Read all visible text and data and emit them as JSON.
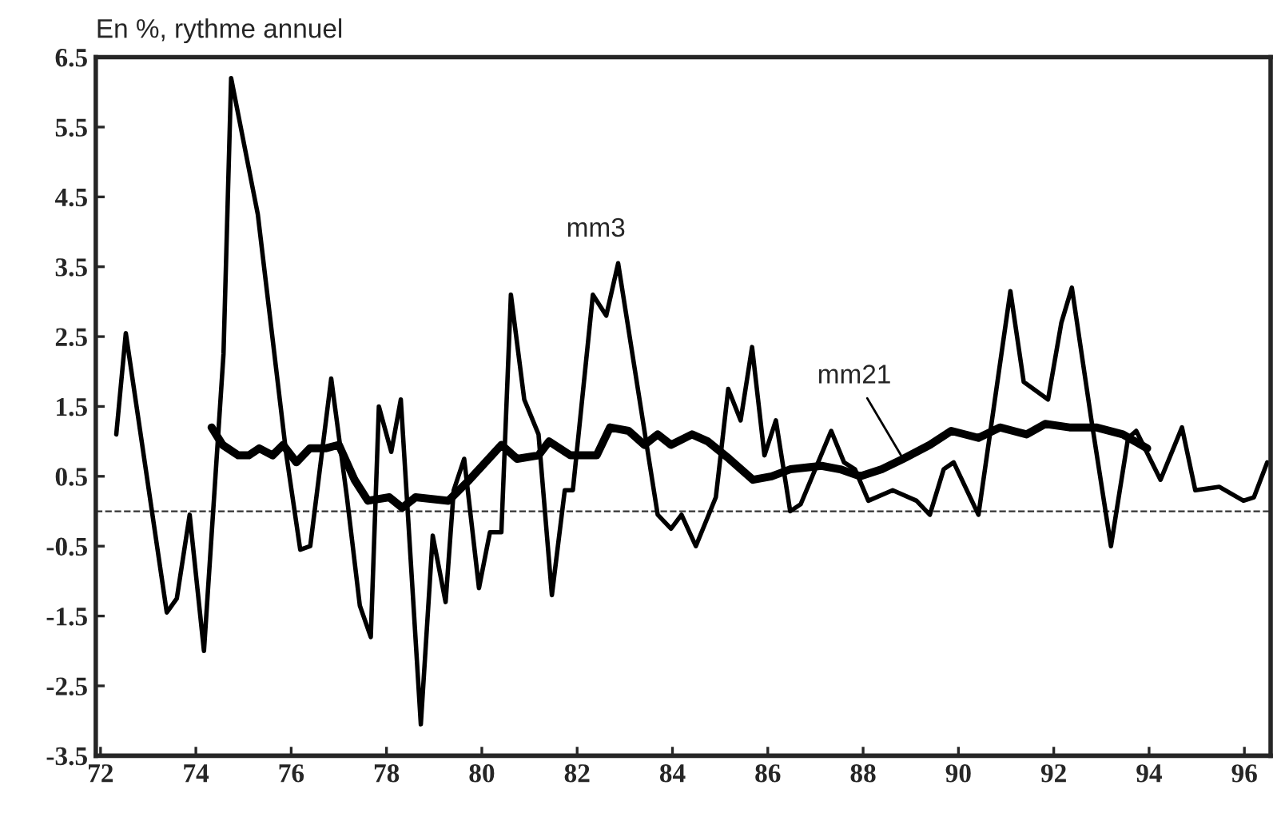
{
  "chart_data": {
    "type": "line",
    "ylabel": "En %, rythme annuel",
    "xlim": [
      71.9,
      96.55
    ],
    "xticks": [
      {
        "value": 72,
        "label": "72"
      },
      {
        "value": 74,
        "label": "74"
      },
      {
        "value": 76,
        "label": "76"
      },
      {
        "value": 78,
        "label": "78"
      },
      {
        "value": 80,
        "label": "80"
      },
      {
        "value": 82,
        "label": "82"
      },
      {
        "value": 84,
        "label": "84"
      },
      {
        "value": 86,
        "label": "86"
      },
      {
        "value": 88,
        "label": "88"
      },
      {
        "value": 90,
        "label": "90"
      },
      {
        "value": 92,
        "label": "92"
      },
      {
        "value": 94,
        "label": "94"
      },
      {
        "value": 96,
        "label": "96"
      }
    ],
    "ylim": [
      -3.5,
      6.5
    ],
    "yticks": [
      -3.5,
      -2.5,
      -1.5,
      -0.5,
      0.5,
      1.5,
      2.5,
      3.5,
      4.5,
      5.5,
      6.5
    ],
    "grid": false,
    "legend": false,
    "marker": "none",
    "line_style": "solid",
    "ref_lines": [
      {
        "axis": "y",
        "value": 0,
        "color": "#333333",
        "line_style": "dashed"
      }
    ],
    "series": [
      {
        "name": "mm3",
        "color": "#000000",
        "x": [
          72.33,
          72.53,
          73.39,
          73.6,
          73.87,
          74.17,
          74.58,
          74.74,
          75.3,
          75.9,
          76.19,
          76.4,
          76.84,
          77.17,
          77.44,
          77.67,
          77.84,
          78.1,
          78.3,
          78.72,
          78.97,
          79.24,
          79.41,
          79.63,
          79.94,
          80.17,
          80.41,
          80.61,
          80.89,
          81.19,
          81.47,
          81.74,
          81.91,
          82.33,
          82.61,
          82.86,
          83.47,
          83.69,
          83.97,
          84.19,
          84.49,
          84.91,
          85.17,
          85.43,
          85.67,
          85.93,
          86.17,
          86.47,
          86.69,
          87.33,
          87.6,
          87.83,
          88.11,
          88.62,
          89.12,
          89.4,
          89.69,
          89.9,
          90.42,
          91.09,
          91.37,
          91.88,
          92.16,
          92.38,
          92.78,
          93.2,
          93.56,
          93.73,
          94.24,
          94.69,
          94.97,
          95.47,
          95.98,
          96.2,
          96.48
        ],
        "values": [
          1.1,
          2.55,
          -1.45,
          -1.25,
          -0.05,
          -2.0,
          2.25,
          6.2,
          4.25,
          0.8,
          -0.55,
          -0.5,
          1.9,
          0.2,
          -1.35,
          -1.8,
          1.5,
          0.85,
          1.6,
          -3.05,
          -0.35,
          -1.3,
          0.3,
          0.75,
          -1.1,
          -0.3,
          -0.3,
          3.1,
          1.6,
          1.1,
          -1.2,
          0.3,
          0.3,
          3.1,
          2.8,
          3.55,
          0.9,
          -0.05,
          -0.25,
          -0.05,
          -0.5,
          0.2,
          1.75,
          1.3,
          2.35,
          0.8,
          1.3,
          0.0,
          0.1,
          1.15,
          0.7,
          0.6,
          0.15,
          0.3,
          0.15,
          -0.05,
          0.6,
          0.7,
          -0.05,
          3.15,
          1.85,
          1.6,
          2.7,
          3.2,
          1.35,
          -0.5,
          1.05,
          1.15,
          0.45,
          1.2,
          0.3,
          0.35,
          0.15,
          0.2,
          0.7
        ]
      },
      {
        "name": "mm21",
        "color": "#000000",
        "x": [
          74.33,
          74.56,
          74.89,
          75.11,
          75.33,
          75.61,
          75.83,
          76.11,
          76.39,
          76.72,
          77.0,
          77.33,
          77.61,
          78.06,
          78.33,
          78.61,
          79.3,
          79.74,
          80.41,
          80.74,
          81.19,
          81.41,
          81.86,
          82.41,
          82.69,
          83.08,
          83.41,
          83.69,
          83.97,
          84.41,
          84.74,
          85.19,
          85.69,
          86.08,
          86.47,
          87.13,
          87.52,
          87.94,
          88.39,
          88.84,
          89.4,
          89.85,
          90.42,
          90.87,
          91.43,
          91.82,
          92.33,
          92.89,
          93.45,
          93.96
        ],
        "values": [
          1.2,
          0.95,
          0.8,
          0.8,
          0.9,
          0.8,
          0.95,
          0.7,
          0.9,
          0.9,
          0.95,
          0.45,
          0.15,
          0.2,
          0.05,
          0.2,
          0.15,
          0.45,
          0.95,
          0.75,
          0.8,
          1.0,
          0.8,
          0.8,
          1.2,
          1.15,
          0.95,
          1.1,
          0.95,
          1.1,
          1.0,
          0.75,
          0.45,
          0.5,
          0.6,
          0.65,
          0.6,
          0.5,
          0.6,
          0.75,
          0.95,
          1.15,
          1.05,
          1.2,
          1.1,
          1.25,
          1.2,
          1.2,
          1.1,
          0.9
        ]
      }
    ]
  }
}
